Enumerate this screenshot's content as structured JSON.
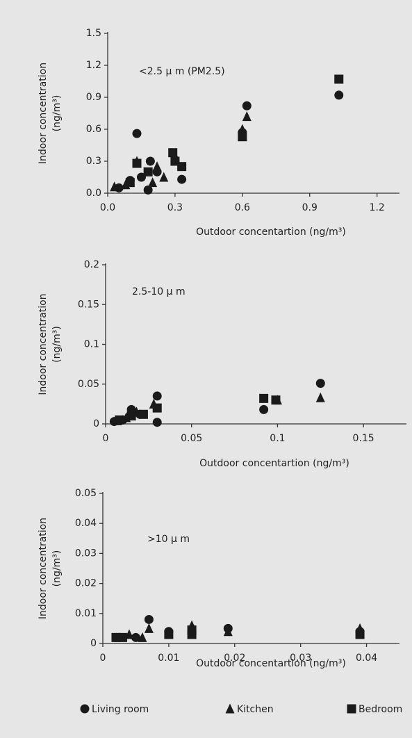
{
  "chart_data": [
    {
      "type": "scatter",
      "annotation": "<2.5 μ m (PM2.5)",
      "y_label": [
        "Indoor concentration",
        "(ng/m³)"
      ],
      "x_label": "Outdoor concentartion (ng/m³)",
      "xlim": [
        0,
        1.3
      ],
      "xticks": [
        {
          "value": 0,
          "label": "0.0"
        },
        0.3,
        0.6,
        0.9,
        1.2
      ],
      "ylim": [
        0,
        1.5
      ],
      "yticks": [
        {
          "value": 0,
          "label": "0.0"
        },
        0.3,
        0.6,
        0.9,
        1.2,
        1.5
      ],
      "series": [
        {
          "marker": "circle",
          "color": "#1a1a1a",
          "x": [
            0.13,
            0.62,
            1.03,
            0.6,
            0.3,
            0.33,
            0.19,
            0.18,
            0.1,
            0.15,
            0.22,
            0.05
          ],
          "values": [
            0.56,
            0.82,
            0.92,
            0.57,
            0.3,
            0.13,
            0.3,
            0.03,
            0.12,
            0.15,
            0.2,
            0.05
          ]
        },
        {
          "marker": "triangle",
          "color": "#1a1a1a",
          "x": [
            0.62,
            0.6,
            0.13,
            0.2,
            0.25,
            0.03,
            0.08,
            0.3,
            0.22
          ],
          "values": [
            0.72,
            0.6,
            0.3,
            0.1,
            0.15,
            0.06,
            0.08,
            0.35,
            0.25
          ]
        },
        {
          "marker": "square",
          "color": "#1a1a1a",
          "x": [
            1.03,
            0.6,
            0.29,
            0.33,
            0.13,
            0.18,
            0.1,
            0.3
          ],
          "values": [
            1.07,
            0.53,
            0.38,
            0.25,
            0.28,
            0.2,
            0.1,
            0.3
          ]
        }
      ]
    },
    {
      "type": "scatter",
      "annotation": "2.5-10 μ m",
      "y_label": [
        "Indoor concentration",
        "(ng/m³)"
      ],
      "x_label": "Outdoor concentartion (ng/m³)",
      "xlim": [
        0,
        0.175
      ],
      "xticks": [
        0,
        0.05,
        0.1,
        0.15
      ],
      "ylim": [
        0,
        0.2
      ],
      "yticks": [
        0,
        0.05,
        0.1,
        0.15,
        0.2
      ],
      "series": [
        {
          "marker": "circle",
          "color": "#1a1a1a",
          "x": [
            0.125,
            0.092,
            0.03,
            0.03,
            0.015,
            0.01,
            0.005,
            0.02
          ],
          "values": [
            0.051,
            0.018,
            0.035,
            0.002,
            0.018,
            0.005,
            0.003,
            0.012
          ]
        },
        {
          "marker": "triangle",
          "color": "#1a1a1a",
          "x": [
            0.125,
            0.1,
            0.028,
            0.018,
            0.012,
            0.007
          ],
          "values": [
            0.033,
            0.03,
            0.025,
            0.015,
            0.008,
            0.004
          ]
        },
        {
          "marker": "square",
          "color": "#1a1a1a",
          "x": [
            0.092,
            0.099,
            0.03,
            0.022,
            0.015,
            0.008
          ],
          "values": [
            0.032,
            0.03,
            0.02,
            0.012,
            0.01,
            0.005
          ]
        }
      ]
    },
    {
      "type": "scatter",
      "annotation": ">10 μ m",
      "y_label": [
        "Indoor concentration",
        "(ng/m³)"
      ],
      "x_label": "Outdoor concentartion (ng/m³)",
      "xlim": [
        0,
        0.045
      ],
      "xticks": [
        0,
        0.01,
        0.02,
        0.03,
        0.04
      ],
      "ylim": [
        0,
        0.05
      ],
      "yticks": [
        0,
        0.01,
        0.02,
        0.03,
        0.04,
        0.05
      ],
      "series": [
        {
          "name": "Living room",
          "marker": "circle",
          "color": "#1a1a1a",
          "x": [
            0.007,
            0.01,
            0.019,
            0.039,
            0.002,
            0.005
          ],
          "values": [
            0.008,
            0.004,
            0.005,
            0.004,
            0.002,
            0.002
          ]
        },
        {
          "name": "Kitchen",
          "marker": "triangle",
          "color": "#1a1a1a",
          "x": [
            0.007,
            0.0135,
            0.004,
            0.006,
            0.01,
            0.039,
            0.019
          ],
          "values": [
            0.005,
            0.006,
            0.003,
            0.002,
            0.003,
            0.005,
            0.004
          ]
        },
        {
          "name": "Bedroom",
          "marker": "square",
          "color": "#1a1a1a",
          "x": [
            0.0135,
            0.039,
            0.002,
            0.003,
            0.0135,
            0.01
          ],
          "values": [
            0.003,
            0.003,
            0.002,
            0.002,
            0.0045,
            0.003
          ]
        }
      ]
    }
  ]
}
